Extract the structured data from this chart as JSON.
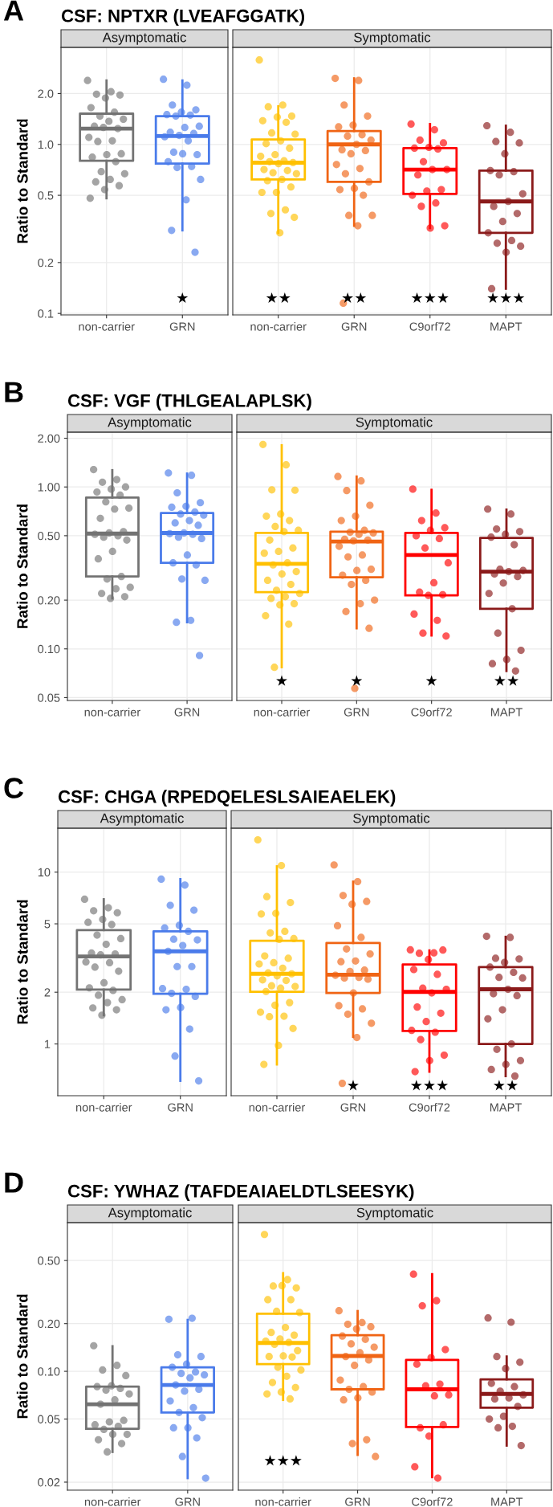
{
  "chart_data": [
    {
      "type": "box",
      "title": "CSF: NPTXR (LVEAFGGATK)",
      "subtitle": "Asymptomatic",
      "ylabel": "Ratio to Standard",
      "categories": [
        "non-carrier",
        "GRN"
      ],
      "colors": [
        "#737373",
        "#4a7bea"
      ],
      "boxes": [
        {
          "low": 0.48,
          "q1": 0.8,
          "median": 1.24,
          "q3": 1.52,
          "high": 2.39
        },
        {
          "low": 0.31,
          "q1": 0.77,
          "median": 1.12,
          "q3": 1.47,
          "high": 2.39
        }
      ],
      "series": [
        {
          "type": "scatter",
          "color": "#737373",
          "x": [
            "non-carrier",
            "non-carrier",
            "non-carrier",
            "non-carrier",
            "non-carrier",
            "non-carrier",
            "non-carrier",
            "non-carrier",
            "non-carrier",
            "non-carrier",
            "non-carrier",
            "non-carrier",
            "non-carrier",
            "non-carrier",
            "non-carrier",
            "non-carrier",
            "non-carrier",
            "non-carrier",
            "non-carrier",
            "non-carrier",
            "non-carrier",
            "non-carrier",
            "non-carrier",
            "non-carrier",
            "non-carrier",
            "non-carrier",
            "non-carrier"
          ],
          "values": [
            2.39,
            2.05,
            1.98,
            1.96,
            1.88,
            1.65,
            1.55,
            1.47,
            1.41,
            1.37,
            1.28,
            1.24,
            1.26,
            1.1,
            1.05,
            1.04,
            0.88,
            0.87,
            0.84,
            0.79,
            0.69,
            0.67,
            0.62,
            0.6,
            0.57,
            0.54,
            0.48
          ]
        },
        {
          "type": "scatter",
          "color": "#4a7bea",
          "x": [
            "GRN",
            "GRN",
            "GRN",
            "GRN",
            "GRN",
            "GRN",
            "GRN",
            "GRN",
            "GRN",
            "GRN",
            "GRN",
            "GRN",
            "GRN",
            "GRN",
            "GRN",
            "GRN",
            "GRN",
            "GRN",
            "GRN",
            "GRN",
            "GRN",
            "GRN",
            "GRN",
            "GRN",
            "GRN"
          ],
          "values": [
            2.43,
            2.24,
            1.71,
            1.6,
            1.55,
            1.5,
            1.49,
            1.47,
            1.28,
            1.26,
            1.18,
            1.16,
            1.13,
            1.11,
            1.05,
            0.9,
            0.87,
            0.88,
            0.79,
            0.74,
            0.73,
            0.62,
            0.47,
            0.31,
            0.23
          ]
        }
      ],
      "log": true,
      "ylim": [
        0.098,
        3.75
      ],
      "yticks": [
        0.1,
        0.2,
        0.5,
        {
          "value": 1,
          "label": "1.0"
        },
        {
          "value": 2,
          "label": "2.0"
        }
      ],
      "grid": true,
      "annotations": [
        "A",
        "★"
      ]
    },
    {
      "type": "box",
      "subtitle": "Symptomatic",
      "categories": [
        "non-carrier",
        "GRN",
        "C9orf72",
        "MAPT"
      ],
      "colors": [
        "#ffc000",
        "#f06414",
        "#ff0000",
        "#8b1a1a"
      ],
      "boxes": [
        {
          "low": 0.3,
          "q1": 0.62,
          "median": 0.78,
          "q3": 1.07,
          "high": 1.68
        },
        {
          "low": 0.33,
          "q1": 0.6,
          "median": 1.0,
          "q3": 1.2,
          "high": 2.46
        },
        {
          "low": 0.32,
          "q1": 0.51,
          "median": 0.71,
          "q3": 0.95,
          "high": 1.32
        },
        {
          "low": 0.14,
          "q1": 0.3,
          "median": 0.46,
          "q3": 0.7,
          "high": 1.29
        }
      ],
      "series": [
        {
          "type": "scatter",
          "color": "#ffc000",
          "x": [
            "non-carrier",
            "non-carrier",
            "non-carrier",
            "non-carrier",
            "non-carrier",
            "non-carrier",
            "non-carrier",
            "non-carrier",
            "non-carrier",
            "non-carrier",
            "non-carrier",
            "non-carrier",
            "non-carrier",
            "non-carrier",
            "non-carrier",
            "non-carrier",
            "non-carrier",
            "non-carrier",
            "non-carrier",
            "non-carrier",
            "non-carrier",
            "non-carrier",
            "non-carrier",
            "non-carrier",
            "non-carrier",
            "non-carrier",
            "non-carrier",
            "non-carrier",
            "non-carrier",
            "non-carrier",
            "non-carrier"
          ],
          "values": [
            3.16,
            1.71,
            1.67,
            1.47,
            1.45,
            1.38,
            1.35,
            1.17,
            1.15,
            1.05,
            1.01,
            0.95,
            0.87,
            0.85,
            0.8,
            0.79,
            0.78,
            0.77,
            0.71,
            0.7,
            0.68,
            0.67,
            0.62,
            0.61,
            0.56,
            0.52,
            0.52,
            0.41,
            0.39,
            0.37,
            0.3
          ]
        },
        {
          "type": "scatter",
          "color": "#f06414",
          "x": [
            "GRN",
            "GRN",
            "GRN",
            "GRN",
            "GRN",
            "GRN",
            "GRN",
            "GRN",
            "GRN",
            "GRN",
            "GRN",
            "GRN",
            "GRN",
            "GRN",
            "GRN",
            "GRN",
            "GRN",
            "GRN",
            "GRN",
            "GRN",
            "GRN",
            "GRN",
            "GRN",
            "GRN"
          ],
          "values": [
            2.46,
            2.39,
            1.71,
            1.47,
            1.3,
            1.27,
            1.14,
            1.12,
            1.06,
            1.0,
            0.93,
            0.92,
            0.88,
            0.76,
            0.72,
            0.67,
            0.6,
            0.55,
            0.54,
            0.5,
            0.38,
            0.38,
            0.33,
            0.115
          ]
        },
        {
          "type": "scatter",
          "color": "#ff0000",
          "x": [
            "C9orf72",
            "C9orf72",
            "C9orf72",
            "C9orf72",
            "C9orf72",
            "C9orf72",
            "C9orf72",
            "C9orf72",
            "C9orf72",
            "C9orf72",
            "C9orf72",
            "C9orf72",
            "C9orf72",
            "C9orf72",
            "C9orf72",
            "C9orf72",
            "C9orf72",
            "C9orf72"
          ],
          "values": [
            1.32,
            1.22,
            1.06,
            1.02,
            0.96,
            0.95,
            0.94,
            0.79,
            0.71,
            0.71,
            0.66,
            0.54,
            0.53,
            0.5,
            0.45,
            0.43,
            0.33,
            0.32
          ]
        },
        {
          "type": "scatter",
          "color": "#8b1a1a",
          "x": [
            "MAPT",
            "MAPT",
            "MAPT",
            "MAPT",
            "MAPT",
            "MAPT",
            "MAPT",
            "MAPT",
            "MAPT",
            "MAPT",
            "MAPT",
            "MAPT",
            "MAPT",
            "MAPT",
            "MAPT",
            "MAPT",
            "MAPT",
            "MAPT",
            "MAPT"
          ],
          "values": [
            1.29,
            1.18,
            1.04,
            1.02,
            0.88,
            0.7,
            0.69,
            0.66,
            0.51,
            0.46,
            0.43,
            0.39,
            0.35,
            0.3,
            0.27,
            0.26,
            0.25,
            0.23,
            0.14
          ]
        }
      ],
      "log": true,
      "ylim": [
        0.098,
        3.75
      ],
      "yticks": [
        0.1,
        0.2,
        0.5,
        1,
        2
      ],
      "grid": true,
      "tick_labels": "x",
      "annotations": [
        "★★",
        "★★",
        "★★★",
        "★★★"
      ]
    },
    {
      "type": "box",
      "title": "CSF: VGF (THLGEALAPLSK)",
      "subtitle": "Asymptomatic",
      "ylabel": "Ratio to Standard",
      "categories": [
        "non-carrier",
        "GRN"
      ],
      "colors": [
        "#737373",
        "#4a7bea"
      ],
      "boxes": [
        {
          "low": 0.205,
          "q1": 0.28,
          "median": 0.515,
          "q3": 0.86,
          "high": 1.27
        },
        {
          "low": 0.146,
          "q1": 0.34,
          "median": 0.52,
          "q3": 0.69,
          "high": 1.21
        }
      ],
      "series": [
        {
          "type": "scatter",
          "color": "#737373",
          "x": [
            "non-carrier",
            "non-carrier",
            "non-carrier",
            "non-carrier",
            "non-carrier",
            "non-carrier",
            "non-carrier",
            "non-carrier",
            "non-carrier",
            "non-carrier",
            "non-carrier",
            "non-carrier",
            "non-carrier",
            "non-carrier",
            "non-carrier",
            "non-carrier",
            "non-carrier",
            "non-carrier",
            "non-carrier",
            "non-carrier",
            "non-carrier",
            "non-carrier",
            "non-carrier",
            "non-carrier",
            "non-carrier",
            "non-carrier"
          ],
          "values": [
            1.28,
            1.11,
            1.07,
            1.0,
            0.97,
            0.93,
            0.89,
            0.81,
            0.74,
            0.73,
            0.64,
            0.53,
            0.52,
            0.51,
            0.5,
            0.49,
            0.47,
            0.4,
            0.36,
            0.28,
            0.27,
            0.24,
            0.235,
            0.22,
            0.21,
            0.205
          ]
        },
        {
          "type": "scatter",
          "color": "#4a7bea",
          "x": [
            "GRN",
            "GRN",
            "GRN",
            "GRN",
            "GRN",
            "GRN",
            "GRN",
            "GRN",
            "GRN",
            "GRN",
            "GRN",
            "GRN",
            "GRN",
            "GRN",
            "GRN",
            "GRN",
            "GRN",
            "GRN",
            "GRN",
            "GRN",
            "GRN",
            "GRN",
            "GRN",
            "GRN",
            "GRN"
          ],
          "values": [
            1.22,
            1.18,
            0.92,
            0.8,
            0.76,
            0.75,
            0.7,
            0.68,
            0.67,
            0.62,
            0.6,
            0.58,
            0.52,
            0.515,
            0.51,
            0.49,
            0.48,
            0.38,
            0.34,
            0.33,
            0.27,
            0.265,
            0.15,
            0.146,
            0.091
          ]
        }
      ],
      "log": true,
      "ylim": [
        0.048,
        2.18
      ],
      "yticks": [
        {
          "value": 0.05,
          "label": "0.05"
        },
        {
          "value": 0.1,
          "label": "0.10"
        },
        {
          "value": 0.2,
          "label": "0.20"
        },
        {
          "value": 0.5,
          "label": "0.50"
        },
        {
          "value": 1,
          "label": "1.00"
        },
        {
          "value": 2,
          "label": "2.00"
        }
      ],
      "grid": true,
      "annotations": [
        "B"
      ]
    },
    {
      "type": "box",
      "subtitle": "Symptomatic",
      "categories": [
        "non-carrier",
        "GRN",
        "C9orf72",
        "MAPT"
      ],
      "colors": [
        "#ffc000",
        "#f06414",
        "#ff0000",
        "#8b1a1a"
      ],
      "boxes": [
        {
          "low": 0.077,
          "q1": 0.224,
          "median": 0.335,
          "q3": 0.52,
          "high": 1.81
        },
        {
          "low": 0.134,
          "q1": 0.277,
          "median": 0.46,
          "q3": 0.53,
          "high": 1.16
        },
        {
          "low": 0.121,
          "q1": 0.214,
          "median": 0.38,
          "q3": 0.52,
          "high": 0.96
        },
        {
          "low": 0.073,
          "q1": 0.177,
          "median": 0.3,
          "q3": 0.485,
          "high": 0.725
        }
      ],
      "series": [
        {
          "type": "scatter",
          "color": "#ffc000",
          "x": [
            "non-carrier",
            "non-carrier",
            "non-carrier",
            "non-carrier",
            "non-carrier",
            "non-carrier",
            "non-carrier",
            "non-carrier",
            "non-carrier",
            "non-carrier",
            "non-carrier",
            "non-carrier",
            "non-carrier",
            "non-carrier",
            "non-carrier",
            "non-carrier",
            "non-carrier",
            "non-carrier",
            "non-carrier",
            "non-carrier",
            "non-carrier",
            "non-carrier",
            "non-carrier",
            "non-carrier",
            "non-carrier",
            "non-carrier",
            "non-carrier",
            "non-carrier",
            "non-carrier"
          ],
          "values": [
            1.83,
            1.37,
            0.96,
            0.955,
            0.68,
            0.66,
            0.62,
            0.57,
            0.54,
            0.53,
            0.47,
            0.42,
            0.4,
            0.39,
            0.34,
            0.33,
            0.3,
            0.29,
            0.265,
            0.25,
            0.23,
            0.22,
            0.21,
            0.205,
            0.19,
            0.187,
            0.16,
            0.142,
            0.077
          ]
        },
        {
          "type": "scatter",
          "color": "#f06414",
          "x": [
            "GRN",
            "GRN",
            "GRN",
            "GRN",
            "GRN",
            "GRN",
            "GRN",
            "GRN",
            "GRN",
            "GRN",
            "GRN",
            "GRN",
            "GRN",
            "GRN",
            "GRN",
            "GRN",
            "GRN",
            "GRN",
            "GRN",
            "GRN",
            "GRN",
            "GRN",
            "GRN",
            "GRN",
            "GRN",
            "GRN"
          ],
          "values": [
            1.16,
            1.09,
            0.95,
            0.77,
            0.66,
            0.62,
            0.54,
            0.525,
            0.52,
            0.51,
            0.475,
            0.47,
            0.465,
            0.43,
            0.38,
            0.37,
            0.31,
            0.305,
            0.285,
            0.265,
            0.25,
            0.2,
            0.19,
            0.17,
            0.134,
            0.057
          ]
        },
        {
          "type": "scatter",
          "color": "#ff0000",
          "x": [
            "C9orf72",
            "C9orf72",
            "C9orf72",
            "C9orf72",
            "C9orf72",
            "C9orf72",
            "C9orf72",
            "C9orf72",
            "C9orf72",
            "C9orf72",
            "C9orf72",
            "C9orf72",
            "C9orf72",
            "C9orf72",
            "C9orf72",
            "C9orf72",
            "C9orf72"
          ],
          "values": [
            0.97,
            0.69,
            0.62,
            0.56,
            0.54,
            0.5,
            0.48,
            0.42,
            0.34,
            0.256,
            0.224,
            0.216,
            0.214,
            0.164,
            0.15,
            0.125,
            0.12
          ]
        },
        {
          "type": "scatter",
          "color": "#8b1a1a",
          "x": [
            "MAPT",
            "MAPT",
            "MAPT",
            "MAPT",
            "MAPT",
            "MAPT",
            "MAPT",
            "MAPT",
            "MAPT",
            "MAPT",
            "MAPT",
            "MAPT",
            "MAPT",
            "MAPT",
            "MAPT",
            "MAPT",
            "MAPT",
            "MAPT",
            "MAPT",
            "MAPT"
          ],
          "values": [
            0.73,
            0.68,
            0.55,
            0.53,
            0.51,
            0.49,
            0.44,
            0.31,
            0.305,
            0.3,
            0.29,
            0.28,
            0.255,
            0.22,
            0.177,
            0.125,
            0.098,
            0.086,
            0.081,
            0.073
          ]
        }
      ],
      "log": true,
      "ylim": [
        0.048,
        2.18
      ],
      "yticks": [
        0.05,
        0.1,
        0.2,
        0.5,
        1,
        2
      ],
      "grid": true,
      "tick_labels": "x",
      "annotations": [
        "★",
        "★",
        "★",
        "★★"
      ]
    },
    {
      "type": "box",
      "title": "CSF: CHGA (RPEDQELESLSAIEAELEK)",
      "subtitle": "Asymptomatic",
      "ylabel": "Ratio to Standard",
      "categories": [
        "non-carrier",
        "GRN"
      ],
      "colors": [
        "#737373",
        "#4a7bea"
      ],
      "boxes": [
        {
          "low": 1.47,
          "q1": 2.07,
          "median": 3.23,
          "q3": 4.6,
          "high": 6.95
        },
        {
          "low": 0.61,
          "q1": 1.96,
          "median": 3.46,
          "q3": 4.52,
          "high": 9.1
        }
      ],
      "series": [
        {
          "type": "scatter",
          "color": "#737373",
          "x": [
            "non-carrier",
            "non-carrier",
            "non-carrier",
            "non-carrier",
            "non-carrier",
            "non-carrier",
            "non-carrier",
            "non-carrier",
            "non-carrier",
            "non-carrier",
            "non-carrier",
            "non-carrier",
            "non-carrier",
            "non-carrier",
            "non-carrier",
            "non-carrier",
            "non-carrier",
            "non-carrier",
            "non-carrier",
            "non-carrier",
            "non-carrier",
            "non-carrier",
            "non-carrier",
            "non-carrier",
            "non-carrier",
            "non-carrier"
          ],
          "values": [
            6.95,
            6.2,
            5.95,
            5.8,
            5.3,
            5.1,
            4.95,
            4.3,
            4.1,
            3.8,
            3.38,
            3.34,
            3.3,
            3.0,
            2.97,
            2.8,
            2.65,
            2.27,
            2.12,
            2.05,
            1.92,
            1.81,
            1.74,
            1.62,
            1.58,
            1.47
          ]
        },
        {
          "type": "scatter",
          "color": "#4a7bea",
          "x": [
            "GRN",
            "GRN",
            "GRN",
            "GRN",
            "GRN",
            "GRN",
            "GRN",
            "GRN",
            "GRN",
            "GRN",
            "GRN",
            "GRN",
            "GRN",
            "GRN",
            "GRN",
            "GRN",
            "GRN",
            "GRN",
            "GRN",
            "GRN",
            "GRN",
            "GRN"
          ],
          "values": [
            9.1,
            8.4,
            6.4,
            6.0,
            4.9,
            4.73,
            4.52,
            4.07,
            4.03,
            3.74,
            3.46,
            2.82,
            2.82,
            2.1,
            2.08,
            1.97,
            1.89,
            1.63,
            1.58,
            1.22,
            0.85,
            0.61
          ]
        }
      ],
      "log": true,
      "ylim": [
        0.5,
        18
      ],
      "yticks": [
        1,
        2,
        5,
        10
      ],
      "grid": true,
      "annotations": [
        "C"
      ]
    },
    {
      "type": "box",
      "subtitle": "Symptomatic",
      "categories": [
        "non-carrier",
        "GRN",
        "C9orf72",
        "MAPT"
      ],
      "colors": [
        "#ffc000",
        "#f06414",
        "#ff0000",
        "#8b1a1a"
      ],
      "boxes": [
        {
          "low": 0.76,
          "q1": 2.01,
          "median": 2.56,
          "q3": 3.98,
          "high": 10.8
        },
        {
          "low": 1.1,
          "q1": 1.98,
          "median": 2.53,
          "q3": 3.87,
          "high": 8.8
        },
        {
          "low": 0.69,
          "q1": 1.19,
          "median": 2.01,
          "q3": 2.9,
          "high": 3.5
        },
        {
          "low": 0.65,
          "q1": 1.0,
          "median": 2.08,
          "q3": 2.8,
          "high": 4.2
        }
      ],
      "series": [
        {
          "type": "scatter",
          "color": "#ffc000",
          "x": [
            "non-carrier",
            "non-carrier",
            "non-carrier",
            "non-carrier",
            "non-carrier",
            "non-carrier",
            "non-carrier",
            "non-carrier",
            "non-carrier",
            "non-carrier",
            "non-carrier",
            "non-carrier",
            "non-carrier",
            "non-carrier",
            "non-carrier",
            "non-carrier",
            "non-carrier",
            "non-carrier",
            "non-carrier",
            "non-carrier",
            "non-carrier",
            "non-carrier",
            "non-carrier",
            "non-carrier",
            "non-carrier",
            "non-carrier",
            "non-carrier",
            "non-carrier",
            "non-carrier",
            "non-carrier",
            "non-carrier",
            "non-carrier"
          ],
          "values": [
            15.4,
            10.9,
            7.2,
            6.65,
            5.75,
            5.7,
            4.52,
            4.43,
            4.1,
            4.06,
            3.25,
            3.15,
            2.97,
            2.92,
            2.76,
            2.59,
            2.56,
            2.49,
            2.36,
            2.34,
            2.18,
            2.16,
            2.11,
            2.02,
            1.74,
            1.68,
            1.53,
            1.45,
            1.44,
            1.23,
            0.98,
            0.76
          ]
        },
        {
          "type": "scatter",
          "color": "#f06414",
          "x": [
            "GRN",
            "GRN",
            "GRN",
            "GRN",
            "GRN",
            "GRN",
            "GRN",
            "GRN",
            "GRN",
            "GRN",
            "GRN",
            "GRN",
            "GRN",
            "GRN",
            "GRN",
            "GRN",
            "GRN",
            "GRN",
            "GRN",
            "GRN",
            "GRN",
            "GRN",
            "GRN",
            "GRN"
          ],
          "values": [
            11.0,
            8.8,
            7.3,
            6.75,
            6.5,
            4.87,
            4.17,
            3.57,
            3.34,
            3.04,
            3.01,
            2.69,
            2.64,
            2.51,
            2.44,
            2.42,
            2.38,
            1.98,
            1.67,
            1.6,
            1.49,
            1.32,
            1.09,
            0.59
          ]
        },
        {
          "type": "scatter",
          "color": "#ff0000",
          "x": [
            "C9orf72",
            "C9orf72",
            "C9orf72",
            "C9orf72",
            "C9orf72",
            "C9orf72",
            "C9orf72",
            "C9orf72",
            "C9orf72",
            "C9orf72",
            "C9orf72",
            "C9orf72",
            "C9orf72",
            "C9orf72",
            "C9orf72",
            "C9orf72",
            "C9orf72",
            "C9orf72",
            "C9orf72"
          ],
          "values": [
            3.53,
            3.39,
            3.37,
            3.52,
            3.1,
            2.71,
            2.54,
            2.11,
            2.08,
            1.98,
            1.64,
            1.51,
            1.35,
            1.2,
            1.17,
            1.06,
            0.86,
            0.8,
            0.69
          ]
        },
        {
          "type": "scatter",
          "color": "#8b1a1a",
          "x": [
            "MAPT",
            "MAPT",
            "MAPT",
            "MAPT",
            "MAPT",
            "MAPT",
            "MAPT",
            "MAPT",
            "MAPT",
            "MAPT",
            "MAPT",
            "MAPT",
            "MAPT",
            "MAPT",
            "MAPT",
            "MAPT",
            "MAPT",
            "MAPT",
            "MAPT",
            "MAPT"
          ],
          "values": [
            4.23,
            4.17,
            3.15,
            3.12,
            2.98,
            2.8,
            2.61,
            2.44,
            2.42,
            2.08,
            1.96,
            1.91,
            1.58,
            1.4,
            1.0,
            0.93,
            0.8,
            0.76,
            0.71,
            0.65
          ]
        }
      ],
      "log": true,
      "ylim": [
        0.5,
        18
      ],
      "yticks": [
        1,
        2,
        5,
        10
      ],
      "grid": true,
      "tick_labels": "x",
      "annotations": [
        "★",
        "★★★",
        "★★"
      ]
    },
    {
      "type": "box",
      "title": "CSF: YWHAZ (TAFDEAIAELDTLSEESYK)",
      "subtitle": "Asymptomatic",
      "ylabel": "Ratio to Standard",
      "categories": [
        "non-carrier",
        "GRN"
      ],
      "colors": [
        "#737373",
        "#4a7bea"
      ],
      "boxes": [
        {
          "low": 0.031,
          "q1": 0.0434,
          "median": 0.062,
          "q3": 0.08,
          "high": 0.144
        },
        {
          "low": 0.0212,
          "q1": 0.055,
          "median": 0.082,
          "q3": 0.106,
          "high": 0.211
        }
      ],
      "series": [
        {
          "type": "scatter",
          "color": "#737373",
          "x": [
            "non-carrier",
            "non-carrier",
            "non-carrier",
            "non-carrier",
            "non-carrier",
            "non-carrier",
            "non-carrier",
            "non-carrier",
            "non-carrier",
            "non-carrier",
            "non-carrier",
            "non-carrier",
            "non-carrier",
            "non-carrier",
            "non-carrier",
            "non-carrier",
            "non-carrier",
            "non-carrier",
            "non-carrier",
            "non-carrier",
            "non-carrier"
          ],
          "values": [
            0.145,
            0.109,
            0.102,
            0.094,
            0.081,
            0.08,
            0.078,
            0.076,
            0.072,
            0.066,
            0.062,
            0.049,
            0.048,
            0.046,
            0.045,
            0.043,
            0.04,
            0.04,
            0.037,
            0.035,
            0.031
          ]
        },
        {
          "type": "scatter",
          "color": "#4a7bea",
          "x": [
            "GRN",
            "GRN",
            "GRN",
            "GRN",
            "GRN",
            "GRN",
            "GRN",
            "GRN",
            "GRN",
            "GRN",
            "GRN",
            "GRN",
            "GRN",
            "GRN",
            "GRN",
            "GRN",
            "GRN",
            "GRN",
            "GRN",
            "GRN",
            "GRN",
            "GRN"
          ],
          "values": [
            0.213,
            0.216,
            0.127,
            0.124,
            0.111,
            0.106,
            0.099,
            0.097,
            0.095,
            0.091,
            0.082,
            0.077,
            0.075,
            0.065,
            0.059,
            0.055,
            0.051,
            0.044,
            0.044,
            0.038,
            0.029,
            0.0212
          ]
        }
      ],
      "log": true,
      "ylim": [
        0.0178,
        0.867
      ],
      "yticks": [
        0.02,
        0.05,
        {
          "value": 0.1,
          "label": "0.10"
        },
        {
          "value": 0.2,
          "label": "0.20"
        },
        {
          "value": 0.5,
          "label": "0.50"
        }
      ],
      "grid": true,
      "annotations": [
        "D"
      ]
    },
    {
      "type": "box",
      "subtitle": "Symptomatic",
      "categories": [
        "non-carrier",
        "GRN",
        "C9orf72",
        "MAPT"
      ],
      "colors": [
        "#ffc000",
        "#f06414",
        "#ff0000",
        "#8b1a1a"
      ],
      "boxes": [
        {
          "low": 0.066,
          "q1": 0.111,
          "median": 0.151,
          "q3": 0.231,
          "high": 0.416
        },
        {
          "low": 0.0297,
          "q1": 0.077,
          "median": 0.125,
          "q3": 0.169,
          "high": 0.24
        },
        {
          "low": 0.0215,
          "q1": 0.0445,
          "median": 0.077,
          "q3": 0.118,
          "high": 0.41
        },
        {
          "low": 0.034,
          "q1": 0.059,
          "median": 0.072,
          "q3": 0.089,
          "high": 0.124
        }
      ],
      "series": [
        {
          "type": "scatter",
          "color": "#ffc000",
          "x": [
            "non-carrier",
            "non-carrier",
            "non-carrier",
            "non-carrier",
            "non-carrier",
            "non-carrier",
            "non-carrier",
            "non-carrier",
            "non-carrier",
            "non-carrier",
            "non-carrier",
            "non-carrier",
            "non-carrier",
            "non-carrier",
            "non-carrier",
            "non-carrier",
            "non-carrier",
            "non-carrier",
            "non-carrier",
            "non-carrier",
            "non-carrier",
            "non-carrier",
            "non-carrier",
            "non-carrier",
            "non-carrier",
            "non-carrier",
            "non-carrier",
            "non-carrier"
          ],
          "values": [
            0.73,
            0.379,
            0.345,
            0.336,
            0.347,
            0.283,
            0.283,
            0.239,
            0.235,
            0.189,
            0.176,
            0.169,
            0.16,
            0.155,
            0.152,
            0.148,
            0.135,
            0.125,
            0.124,
            0.123,
            0.106,
            0.102,
            0.093,
            0.085,
            0.079,
            0.074,
            0.072,
            0.067
          ]
        },
        {
          "type": "scatter",
          "color": "#f06414",
          "x": [
            "GRN",
            "GRN",
            "GRN",
            "GRN",
            "GRN",
            "GRN",
            "GRN",
            "GRN",
            "GRN",
            "GRN",
            "GRN",
            "GRN",
            "GRN",
            "GRN",
            "GRN",
            "GRN",
            "GRN",
            "GRN",
            "GRN",
            "GRN",
            "GRN",
            "GRN"
          ],
          "values": [
            0.241,
            0.203,
            0.198,
            0.191,
            0.185,
            0.167,
            0.159,
            0.149,
            0.142,
            0.131,
            0.124,
            0.118,
            0.109,
            0.088,
            0.08,
            0.077,
            0.074,
            0.068,
            0.066,
            0.037,
            0.035,
            0.029
          ]
        },
        {
          "type": "scatter",
          "color": "#ff0000",
          "x": [
            "C9orf72",
            "C9orf72",
            "C9orf72",
            "C9orf72",
            "C9orf72",
            "C9orf72",
            "C9orf72",
            "C9orf72",
            "C9orf72",
            "C9orf72",
            "C9orf72",
            "C9orf72",
            "C9orf72",
            "C9orf72",
            "C9orf72"
          ],
          "values": [
            0.41,
            0.279,
            0.259,
            0.137,
            0.122,
            0.111,
            0.083,
            0.081,
            0.071,
            0.07,
            0.044,
            0.046,
            0.039,
            0.025,
            0.0212
          ]
        },
        {
          "type": "scatter",
          "color": "#8b1a1a",
          "x": [
            "MAPT",
            "MAPT",
            "MAPT",
            "MAPT",
            "MAPT",
            "MAPT",
            "MAPT",
            "MAPT",
            "MAPT",
            "MAPT",
            "MAPT",
            "MAPT",
            "MAPT",
            "MAPT",
            "MAPT",
            "MAPT",
            "MAPT"
          ],
          "values": [
            0.217,
            0.204,
            0.124,
            0.114,
            0.104,
            0.084,
            0.08,
            0.075,
            0.071,
            0.068,
            0.067,
            0.06,
            0.052,
            0.05,
            0.045,
            0.044,
            0.034
          ]
        }
      ],
      "log": true,
      "ylim": [
        0.0178,
        0.867
      ],
      "yticks": [
        0.02,
        0.05,
        0.1,
        0.2,
        0.5
      ],
      "grid": true,
      "tick_labels": "x",
      "annotations": [
        "★★★"
      ]
    }
  ]
}
